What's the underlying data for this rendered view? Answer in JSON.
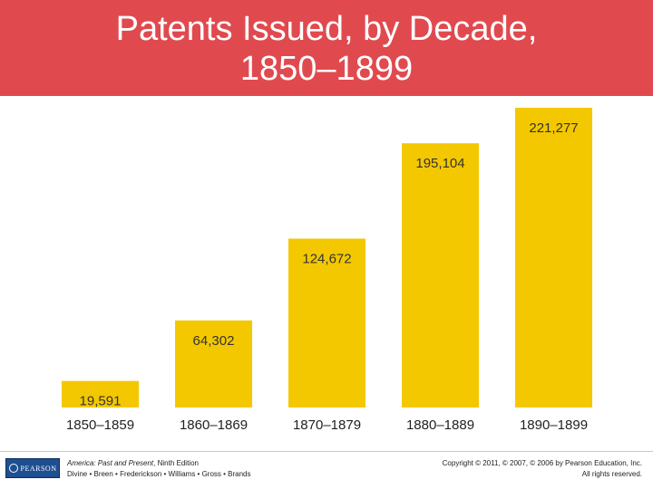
{
  "title": {
    "line1": "Patents Issued, by Decade,",
    "line2": "1850–1899"
  },
  "chart_data": {
    "type": "bar",
    "title": "Patents Issued, by Decade, 1850–1899",
    "categories": [
      "1850–1859",
      "1860–1869",
      "1870–1879",
      "1880–1889",
      "1890–1899"
    ],
    "values": [
      19591,
      64302,
      124672,
      195104,
      221277
    ],
    "value_labels": [
      "19,591",
      "64,302",
      "124,672",
      "195,104",
      "221,277"
    ],
    "ylim": [
      0,
      230000
    ],
    "xlabel": "",
    "ylabel": "",
    "grid": false,
    "colors": {
      "bar": "#f4c800",
      "label_text": "#333333",
      "tick_text": "#222222"
    }
  },
  "footer": {
    "logo_text": "PEARSON",
    "book_title": "America: Past and Present",
    "book_edition": ", Ninth Edition",
    "authors": "Divine • Breen • Frederickson • Williams • Gross • Brands",
    "copyright": "Copyright © 2011, © 2007, © 2006 by Pearson Education, Inc.",
    "rights": "All rights reserved."
  }
}
